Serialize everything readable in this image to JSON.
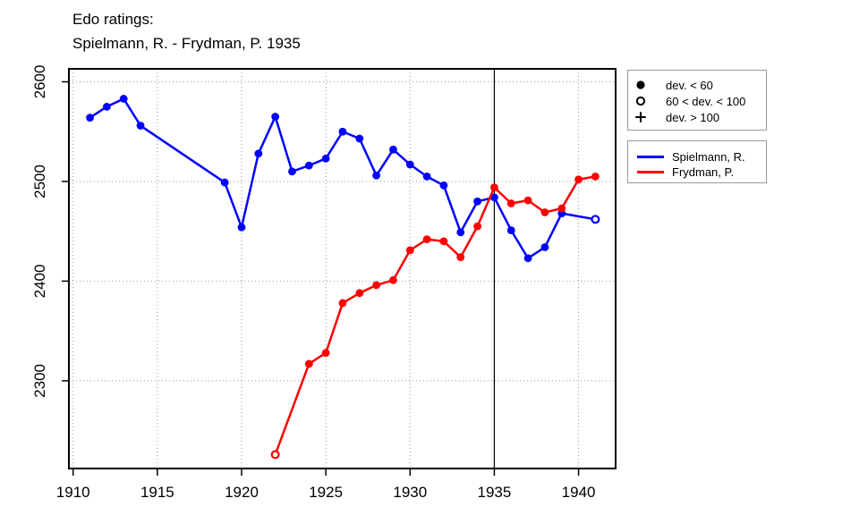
{
  "title": {
    "line1": "Edo ratings:",
    "line2": "Spielmann, R. - Frydman, P. 1935"
  },
  "colors": {
    "spielmann": "#0000ff",
    "frydman": "#ff0000",
    "grid": "#999999",
    "axis": "#000000",
    "reference_line": "#000000",
    "legend_border": "#999999"
  },
  "legend_dev": {
    "items": [
      {
        "icon": "filled-circle",
        "label": "dev. < 60"
      },
      {
        "icon": "open-circle",
        "label": "60 < dev. < 100"
      },
      {
        "icon": "plus",
        "label": "dev. > 100"
      }
    ]
  },
  "legend_series": {
    "items": [
      {
        "name": "Spielmann, R.",
        "color": "#0000ff"
      },
      {
        "name": "Frydman, P.",
        "color": "#ff0000"
      }
    ]
  },
  "chart_data": {
    "type": "line",
    "title": "Edo ratings: Spielmann, R. - Frydman, P. 1935",
    "xlabel": "",
    "ylabel": "",
    "xlim": [
      1909.75,
      1942.2
    ],
    "ylim": [
      2212,
      2613
    ],
    "x_ticks": [
      1910,
      1915,
      1920,
      1925,
      1930,
      1935,
      1940
    ],
    "y_ticks": [
      2300,
      2400,
      2500,
      2600
    ],
    "grid": true,
    "legend_position": "right-outside",
    "reference_line_x": 1935,
    "marker_meaning": {
      "filled": "dev. < 60",
      "open": "60 < dev. < 100",
      "plus": "dev. > 100"
    },
    "series": [
      {
        "id": "spielmann",
        "name": "Spielmann, R.",
        "color": "#0000ff",
        "points": [
          {
            "year": 1911,
            "rating": 2564,
            "marker": "filled"
          },
          {
            "year": 1912,
            "rating": 2575,
            "marker": "filled"
          },
          {
            "year": 1913,
            "rating": 2583,
            "marker": "filled"
          },
          {
            "year": 1914,
            "rating": 2556,
            "marker": "filled"
          },
          {
            "year": 1919,
            "rating": 2499,
            "marker": "filled"
          },
          {
            "year": 1920,
            "rating": 2454,
            "marker": "filled"
          },
          {
            "year": 1921,
            "rating": 2528,
            "marker": "filled"
          },
          {
            "year": 1922,
            "rating": 2565,
            "marker": "filled"
          },
          {
            "year": 1923,
            "rating": 2510,
            "marker": "filled"
          },
          {
            "year": 1924,
            "rating": 2516,
            "marker": "filled"
          },
          {
            "year": 1925,
            "rating": 2523,
            "marker": "filled"
          },
          {
            "year": 1926,
            "rating": 2550,
            "marker": "filled"
          },
          {
            "year": 1927,
            "rating": 2543,
            "marker": "filled"
          },
          {
            "year": 1928,
            "rating": 2506,
            "marker": "filled"
          },
          {
            "year": 1929,
            "rating": 2532,
            "marker": "filled"
          },
          {
            "year": 1930,
            "rating": 2517,
            "marker": "filled"
          },
          {
            "year": 1931,
            "rating": 2505,
            "marker": "filled"
          },
          {
            "year": 1932,
            "rating": 2496,
            "marker": "filled"
          },
          {
            "year": 1933,
            "rating": 2449,
            "marker": "filled"
          },
          {
            "year": 1934,
            "rating": 2480,
            "marker": "filled"
          },
          {
            "year": 1935,
            "rating": 2484,
            "marker": "filled"
          },
          {
            "year": 1936,
            "rating": 2451,
            "marker": "filled"
          },
          {
            "year": 1937,
            "rating": 2423,
            "marker": "filled"
          },
          {
            "year": 1938,
            "rating": 2434,
            "marker": "filled"
          },
          {
            "year": 1939,
            "rating": 2468,
            "marker": "filled"
          },
          {
            "year": 1941,
            "rating": 2462,
            "marker": "open"
          }
        ]
      },
      {
        "id": "frydman",
        "name": "Frydman, P.",
        "color": "#ff0000",
        "points": [
          {
            "year": 1922,
            "rating": 2226,
            "marker": "open"
          },
          {
            "year": 1924,
            "rating": 2317,
            "marker": "filled"
          },
          {
            "year": 1925,
            "rating": 2328,
            "marker": "filled"
          },
          {
            "year": 1926,
            "rating": 2378,
            "marker": "filled"
          },
          {
            "year": 1927,
            "rating": 2388,
            "marker": "filled"
          },
          {
            "year": 1928,
            "rating": 2396,
            "marker": "filled"
          },
          {
            "year": 1929,
            "rating": 2401,
            "marker": "filled"
          },
          {
            "year": 1930,
            "rating": 2431,
            "marker": "filled"
          },
          {
            "year": 1931,
            "rating": 2442,
            "marker": "filled"
          },
          {
            "year": 1932,
            "rating": 2440,
            "marker": "filled"
          },
          {
            "year": 1933,
            "rating": 2424,
            "marker": "filled"
          },
          {
            "year": 1934,
            "rating": 2455,
            "marker": "filled"
          },
          {
            "year": 1935,
            "rating": 2494,
            "marker": "filled"
          },
          {
            "year": 1936,
            "rating": 2478,
            "marker": "filled"
          },
          {
            "year": 1937,
            "rating": 2481,
            "marker": "filled"
          },
          {
            "year": 1938,
            "rating": 2469,
            "marker": "filled"
          },
          {
            "year": 1939,
            "rating": 2473,
            "marker": "filled"
          },
          {
            "year": 1940,
            "rating": 2502,
            "marker": "filled"
          },
          {
            "year": 1941,
            "rating": 2505,
            "marker": "filled"
          }
        ]
      }
    ]
  }
}
